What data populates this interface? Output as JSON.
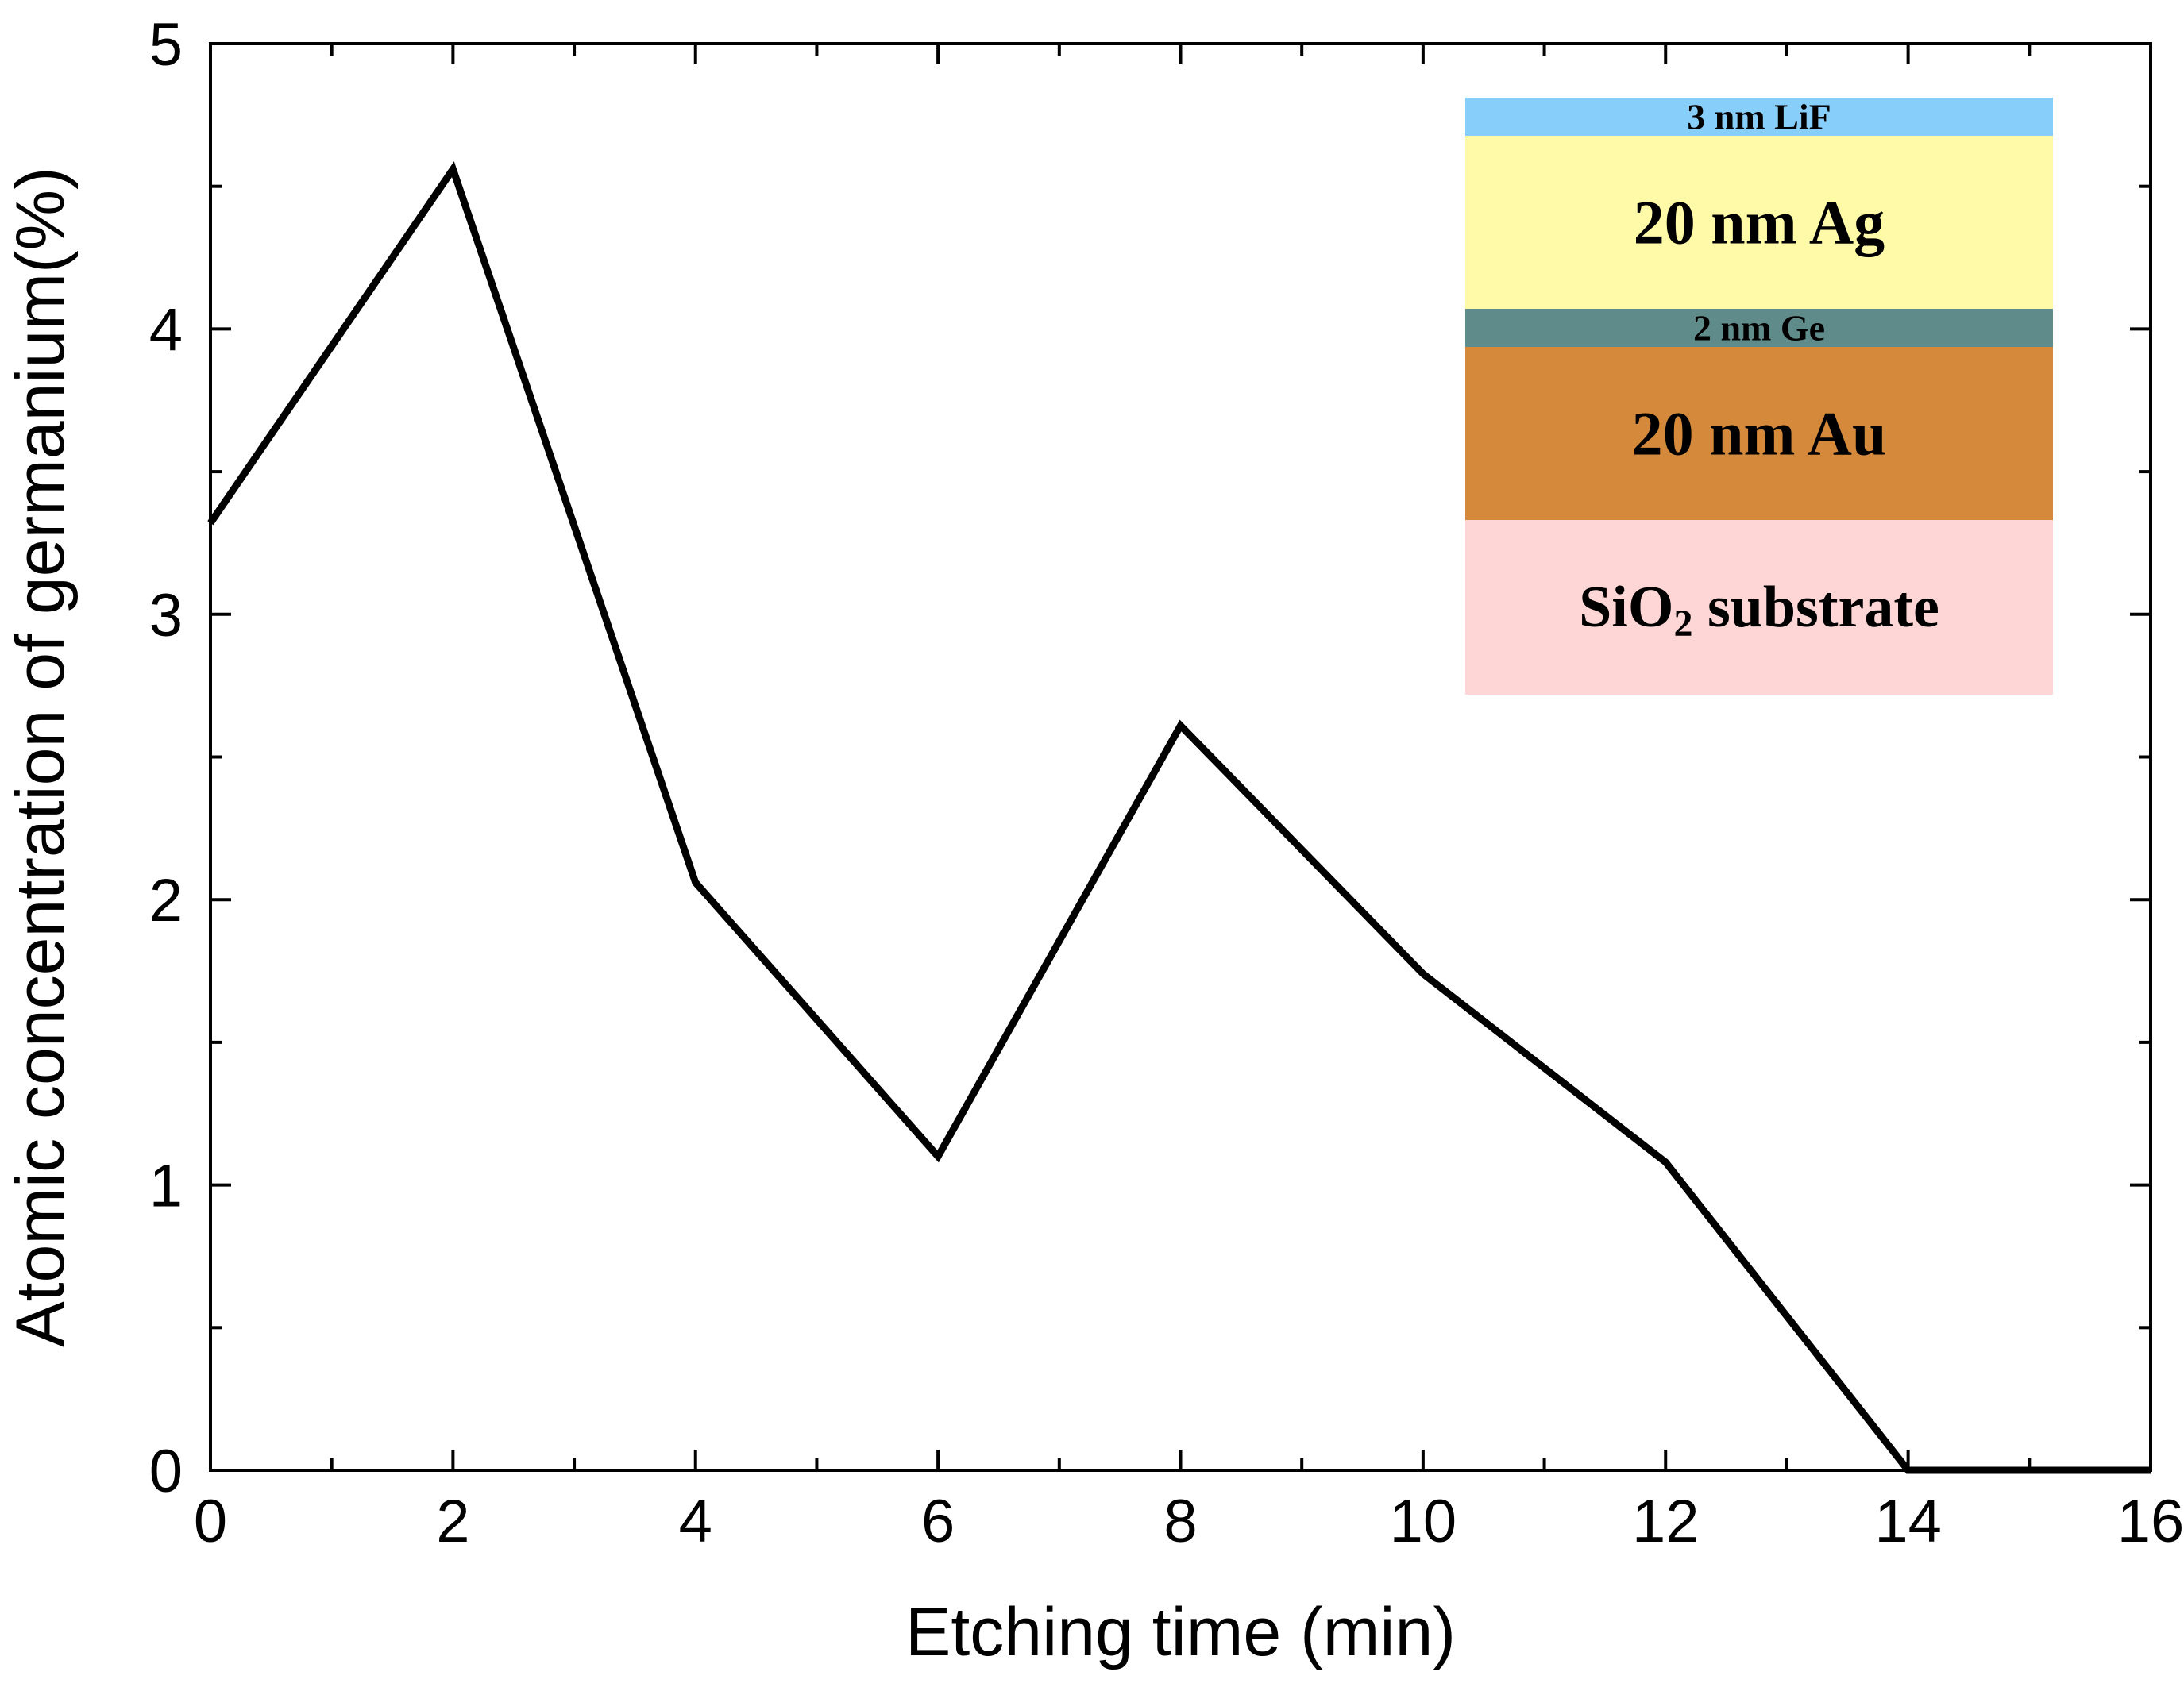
{
  "chart_data": {
    "type": "line",
    "xlabel": "Etching time (min)",
    "ylabel": "Atomic concentration of germanium(%)",
    "xlim": [
      0,
      16
    ],
    "ylim": [
      0,
      5
    ],
    "x_ticks": [
      "0",
      "2",
      "4",
      "6",
      "8",
      "10",
      "12",
      "14",
      "16"
    ],
    "y_ticks": [
      "0",
      "1",
      "2",
      "3",
      "4",
      "5"
    ],
    "grid": false,
    "series": [
      {
        "color": "#000000",
        "x": [
          0,
          2,
          4,
          6,
          8,
          10,
          12,
          14,
          16
        ],
        "y": [
          3.32,
          4.56,
          2.06,
          1.1,
          2.61,
          1.74,
          1.08,
          0.0,
          0.0
        ]
      }
    ],
    "inset": {
      "type": "layer-stack",
      "placement": "top-right",
      "layers": [
        {
          "label": "3 nm LiF",
          "color": "#87cefa"
        },
        {
          "label": "20 nm Ag",
          "color": "#fffaa8"
        },
        {
          "label": "2 nm Ge",
          "color": "#5f8c8a"
        },
        {
          "label": "20 nm Au",
          "color": "#d4893b"
        },
        {
          "label_main": "SiO",
          "label_sub": "2",
          "label_rest": " substrate",
          "color": "#ffd6d6"
        }
      ]
    }
  }
}
